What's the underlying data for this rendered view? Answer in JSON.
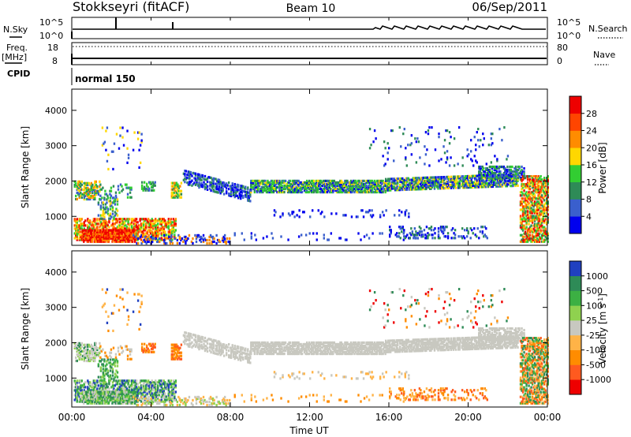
{
  "header": {
    "station": "Stokkseyri (fitACF)",
    "beam": "Beam 10",
    "date": "06/Sep/2011"
  },
  "top_panel": {
    "left_label": "N.Sky",
    "right_label": "N.Search",
    "left_ticks": [
      "10^5",
      "10^0"
    ],
    "right_ticks": [
      "10^5",
      "10^0"
    ]
  },
  "freq_panel": {
    "left_label_1": "Freq.",
    "left_label_2": "[MHz]",
    "right_label": "Nave",
    "left_ticks": [
      "18",
      "8"
    ],
    "right_ticks": [
      "80",
      "0"
    ]
  },
  "cpid": {
    "label": "CPID",
    "mode": "normal 150"
  },
  "x_axis": {
    "label": "Time UT",
    "ticks": [
      "00:00",
      "04:00",
      "08:00",
      "12:00",
      "16:00",
      "20:00",
      "00:00"
    ]
  },
  "chart_data": [
    {
      "type": "heatmap",
      "name": "power",
      "ylabel": "Slant Range [km]",
      "yticks": [
        1000,
        2000,
        3000,
        4000
      ],
      "ylim": [
        180,
        4600
      ],
      "xlim": [
        0,
        24
      ],
      "colorbar": {
        "label": "Power [dB]",
        "ticks": [
          "4",
          "8",
          "12",
          "16",
          "20",
          "24",
          "28"
        ],
        "colors": [
          "#0000ee",
          "#3a5fcd",
          "#2e8b57",
          "#32cd32",
          "#ffd700",
          "#ff8c00",
          "#ff4500",
          "#ee0000"
        ]
      }
    },
    {
      "type": "heatmap",
      "name": "velocity",
      "ylabel": "Slant Range [km]",
      "yticks": [
        1000,
        2000,
        3000,
        4000
      ],
      "ylim": [
        180,
        4600
      ],
      "xlim": [
        0,
        24
      ],
      "colorbar": {
        "label": "Velocity [m s",
        "label_sup": "-1",
        "label_end": "]",
        "ticks": [
          "1000",
          "500",
          "100",
          "25",
          "-25",
          "-100",
          "-500",
          "-1000"
        ],
        "colors": [
          "#2040c0",
          "#2e8b57",
          "#3cb043",
          "#8fd14f",
          "#c8c8c0",
          "#ffb347",
          "#ff8c00",
          "#ff5a1f",
          "#ee0000"
        ]
      }
    }
  ]
}
